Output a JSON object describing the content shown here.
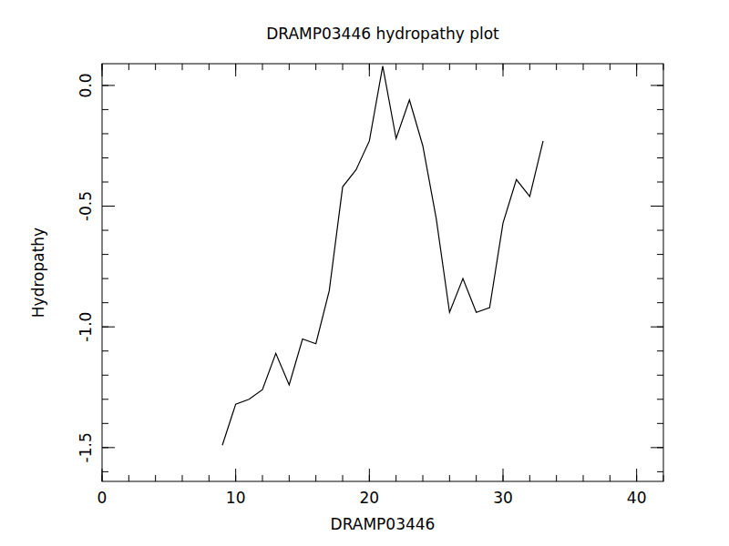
{
  "chart_data": {
    "type": "line",
    "title": "DRAMP03446 hydropathy plot",
    "x_label": "DRAMP03446",
    "y_label": "Hydropathy",
    "x": [
      9,
      10,
      11,
      12,
      13,
      14,
      15,
      16,
      17,
      18,
      19,
      20,
      21,
      22,
      23,
      24,
      25,
      26,
      27,
      28,
      29,
      30,
      31,
      32,
      33
    ],
    "values": [
      -1.49,
      -1.32,
      -1.3,
      -1.26,
      -1.11,
      -1.24,
      -1.05,
      -1.07,
      -0.85,
      -0.42,
      -0.35,
      -0.23,
      0.08,
      -0.22,
      -0.06,
      -0.25,
      -0.55,
      -0.94,
      -0.8,
      -0.94,
      -0.92,
      -0.57,
      -0.39,
      -0.46,
      -0.23
    ],
    "color": "#000000",
    "xlim": [
      0,
      42
    ],
    "xticks": [
      0,
      10,
      20,
      30,
      40
    ],
    "ylim": [
      -1.64,
      0.09
    ],
    "yticks": [
      {
        "value": -1.5,
        "label": "-1.5"
      },
      {
        "value": -1.0,
        "label": "-1.0"
      },
      {
        "value": -0.5,
        "label": "-0.5"
      },
      {
        "value": 0.0,
        "label": "0.0"
      }
    ],
    "grid": false
  }
}
